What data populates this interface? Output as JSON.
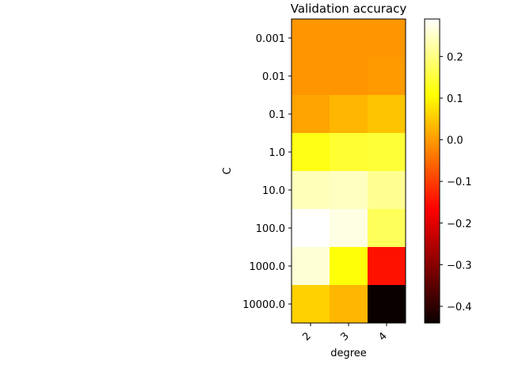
{
  "chart_data": {
    "type": "heatmap",
    "title": "Validation accuracy",
    "xlabel": "degree",
    "ylabel": "C",
    "x_categories": [
      "2",
      "3",
      "4"
    ],
    "y_categories": [
      "0.001",
      "0.01",
      "0.1",
      "1.0",
      "10.0",
      "100.0",
      "1000.0",
      "10000.0"
    ],
    "values": [
      [
        -0.01,
        -0.01,
        -0.01
      ],
      [
        -0.01,
        -0.01,
        -0.005
      ],
      [
        0.005,
        0.025,
        0.04
      ],
      [
        0.12,
        0.14,
        0.145
      ],
      [
        0.24,
        0.245,
        0.21
      ],
      [
        0.29,
        0.27,
        0.17
      ],
      [
        0.26,
        0.11,
        -0.155
      ],
      [
        0.055,
        0.025,
        -0.44
      ]
    ],
    "colormap": "hot",
    "colorbar": {
      "range": [
        -0.44,
        0.29
      ],
      "ticks": [
        0.2,
        0.1,
        0.0,
        -0.1,
        -0.2,
        -0.3,
        -0.4
      ],
      "tick_labels": [
        "0.2",
        "0.1",
        "0.0",
        "−0.1",
        "−0.2",
        "−0.3",
        "−0.4"
      ]
    }
  }
}
